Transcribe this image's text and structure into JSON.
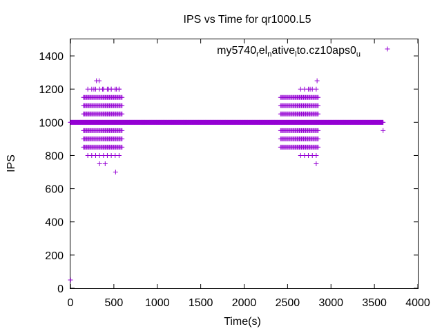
{
  "chart_data": {
    "type": "scatter",
    "title": "IPS vs Time for qr1000.L5",
    "xlabel": "Time(s)",
    "ylabel": "IPS",
    "xlim": [
      0,
      4000
    ],
    "ylim": [
      0,
      1500
    ],
    "x_ticks": [
      0,
      500,
      1000,
      1500,
      2000,
      2500,
      3000,
      3500,
      4000
    ],
    "y_ticks": [
      0,
      200,
      400,
      600,
      800,
      1000,
      1200,
      1400
    ],
    "grid": false,
    "legend_position": "top-right",
    "marker": "+",
    "series": [
      {
        "name": "my5740_rel_native_lto.cz10aps0_u",
        "color": "#9400d3",
        "baseline": {
          "x_start": 0,
          "x_end": 3600,
          "step": 5,
          "y": 1000
        },
        "points": [
          [
            0,
            50
          ],
          [
            3600,
            950
          ],
          [
            300,
            1250
          ],
          [
            330,
            1250
          ],
          [
            270,
            1200
          ],
          [
            370,
            1200
          ],
          [
            440,
            1200
          ],
          [
            470,
            1200
          ],
          [
            530,
            1200
          ],
          [
            560,
            1200
          ],
          [
            2840,
            1250
          ],
          [
            2760,
            1200
          ],
          [
            520,
            700
          ],
          [
            335,
            750
          ],
          [
            400,
            750
          ],
          [
            2830,
            750
          ]
        ],
        "clusters": [
          {
            "x_min": 150,
            "x_max": 600,
            "y": [
              1150,
              1100,
              1050,
              950,
              900,
              850
            ],
            "step": 12
          },
          {
            "x_min": 200,
            "x_max": 560,
            "y": [
              1200,
              800
            ],
            "step": 45
          },
          {
            "x_min": 2420,
            "x_max": 2860,
            "y": [
              1150,
              1100,
              1050,
              950,
              900,
              850
            ],
            "step": 12
          },
          {
            "x_min": 2650,
            "x_max": 2850,
            "y": [
              1200,
              800
            ],
            "step": 45
          }
        ]
      }
    ],
    "legend": {
      "label_parts": [
        {
          "text": "my5740",
          "sub": false
        },
        {
          "text": "r",
          "sub": true
        },
        {
          "text": "el",
          "sub": false
        },
        {
          "text": "n",
          "sub": true
        },
        {
          "text": "ative",
          "sub": false
        },
        {
          "text": "l",
          "sub": true
        },
        {
          "text": "to.cz10aps0",
          "sub": false
        },
        {
          "text": "u",
          "sub": true
        }
      ]
    }
  }
}
